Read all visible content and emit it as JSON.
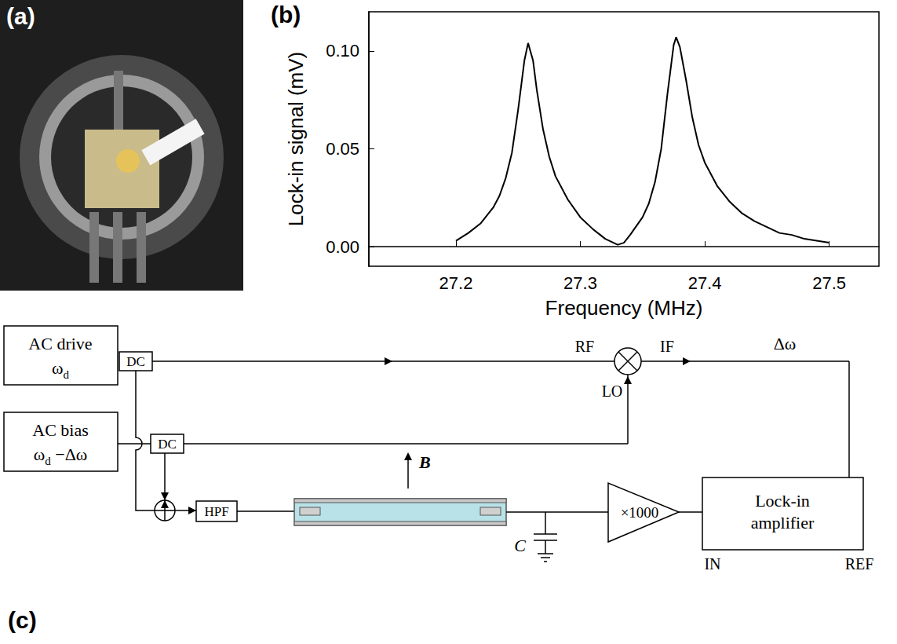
{
  "chart_data": {
    "type": "line",
    "x_label": "Frequency (MHz)",
    "y_label": "Lock-in signal (mV)",
    "x": [
      27.2,
      27.21,
      27.22,
      27.23,
      27.235,
      27.24,
      27.245,
      27.25,
      27.255,
      27.258,
      27.262,
      27.265,
      27.27,
      27.275,
      27.28,
      27.29,
      27.3,
      27.31,
      27.32,
      27.33,
      27.335,
      27.34,
      27.35,
      27.355,
      27.36,
      27.365,
      27.37,
      27.375,
      27.377,
      27.38,
      27.385,
      27.39,
      27.395,
      27.4,
      27.41,
      27.42,
      27.43,
      27.44,
      27.45,
      27.46,
      27.47,
      27.48,
      27.49,
      27.5
    ],
    "values": [
      0.003,
      0.007,
      0.012,
      0.02,
      0.026,
      0.035,
      0.048,
      0.07,
      0.095,
      0.104,
      0.095,
      0.08,
      0.06,
      0.046,
      0.036,
      0.024,
      0.015,
      0.009,
      0.004,
      0.001,
      0.002,
      0.006,
      0.015,
      0.022,
      0.033,
      0.05,
      0.078,
      0.103,
      0.107,
      0.102,
      0.085,
      0.066,
      0.052,
      0.043,
      0.031,
      0.023,
      0.017,
      0.013,
      0.01,
      0.007,
      0.006,
      0.004,
      0.003,
      0.002
    ],
    "color": "#000000",
    "xlim": [
      27.13,
      27.54
    ],
    "xticks": [
      27.2,
      27.3,
      27.4,
      27.5
    ],
    "ylim": [
      -0.01,
      0.12
    ],
    "yticks": [
      {
        "value": 0,
        "label": "0.00"
      },
      {
        "value": 0.05,
        "label": "0.05"
      },
      {
        "value": 0.1,
        "label": "0.10"
      }
    ],
    "grid": false
  },
  "panel_labels": [
    "(a)",
    "(b)",
    "(c)"
  ],
  "diagram": {
    "ac_drive": {
      "label": "AC drive",
      "frequency": {
        "symbol": "ω",
        "subscript": "d",
        "suffix": ""
      }
    },
    "ac_bias": {
      "label": "AC bias",
      "frequency": {
        "symbol": "ω",
        "subscript": "d",
        "suffix": " −Δω"
      }
    },
    "coupler": "DC",
    "filter": "HPF",
    "mixer": {
      "rf": "RF",
      "lo": "LO",
      "if": "IF",
      "output": "Δω"
    },
    "field": "B",
    "capacitor": "C",
    "amplifier": "×1000",
    "lock_in": {
      "label": "Lock-in amplifier",
      "input": "IN",
      "reference": "REF"
    }
  }
}
